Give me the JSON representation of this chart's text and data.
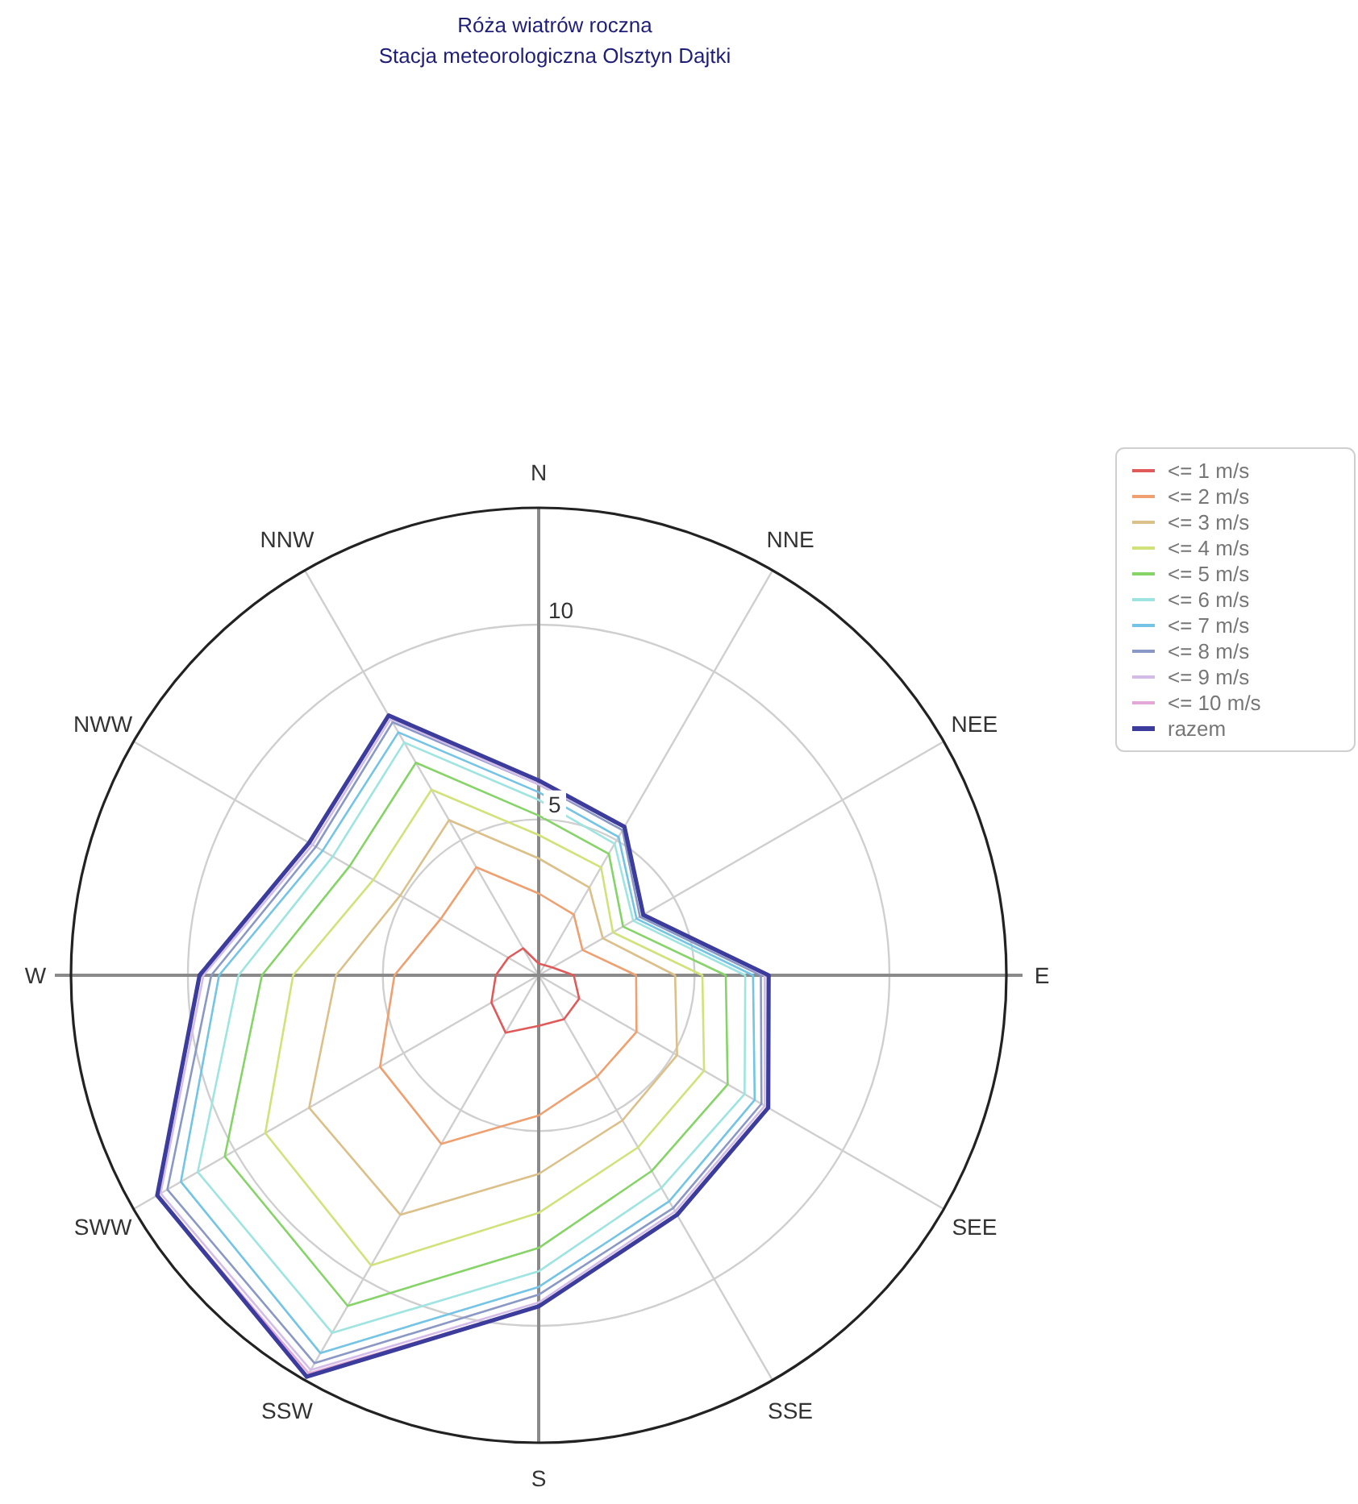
{
  "chart_data": {
    "type": "radar",
    "title": "Róża wiatrów roczna",
    "subtitle": "Stacja meteorologiczna Olsztyn Dajtki",
    "categories": [
      "N",
      "NNE",
      "NEE",
      "E",
      "SEE",
      "SSE",
      "S",
      "SSW",
      "SWW",
      "W",
      "NWW",
      "NNW"
    ],
    "ylim": [
      1,
      13
    ],
    "yticks": [
      5,
      10
    ],
    "grid": true,
    "legend": "top right",
    "marker": "none",
    "line_style": "solid",
    "series": [
      {
        "name": "<= 1 m/s",
        "color": "#e05a5a",
        "values": [
          1.3,
          1.3,
          1.4,
          1.9,
          2.2,
          2.3,
          2.3,
          2.7,
          2.4,
          2.1,
          1.9,
          1.8
        ]
      },
      {
        "name": "<= 2 m/s",
        "color": "#eea070",
        "values": [
          3.1,
          2.8,
          2.3,
          3.5,
          3.9,
          4.0,
          4.6,
          6.0,
          5.7,
          4.7,
          3.9,
          4.2
        ]
      },
      {
        "name": "<= 3 m/s",
        "color": "#dcc08a",
        "values": [
          4.0,
          3.6,
          2.9,
          4.5,
          5.1,
          5.3,
          6.1,
          8.1,
          7.8,
          6.2,
          5.1,
          5.6
        ]
      },
      {
        "name": "<= 4 m/s",
        "color": "#d2e27a",
        "values": [
          4.6,
          4.2,
          3.2,
          5.2,
          5.9,
          6.1,
          7.1,
          9.6,
          9.1,
          7.3,
          5.9,
          6.5
        ]
      },
      {
        "name": "<= 5 m/s",
        "color": "#86d468",
        "values": [
          5.1,
          4.6,
          3.5,
          5.8,
          6.6,
          6.8,
          8.0,
          10.8,
          10.3,
          8.1,
          6.6,
          7.3
        ]
      },
      {
        "name": "<= 6 m/s",
        "color": "#9ee4e0",
        "values": [
          5.5,
          4.9,
          3.8,
          6.3,
          7.1,
          7.3,
          8.6,
          11.6,
          11.1,
          8.7,
          7.1,
          7.9
        ]
      },
      {
        "name": "<= 7 m/s",
        "color": "#74c4e6",
        "values": [
          5.7,
          5.1,
          3.9,
          6.5,
          7.4,
          7.7,
          9.0,
          12.2,
          11.6,
          9.2,
          7.4,
          8.2
        ]
      },
      {
        "name": "<= 8 m/s",
        "color": "#8a98c6",
        "values": [
          5.9,
          5.3,
          4.0,
          6.7,
          7.6,
          7.9,
          9.2,
          12.5,
          12.0,
          9.4,
          7.6,
          8.5
        ]
      },
      {
        "name": "<= 9 m/s",
        "color": "#d4bce8",
        "values": [
          5.9,
          5.4,
          4.1,
          6.8,
          7.7,
          8.0,
          9.4,
          12.7,
          12.2,
          9.6,
          7.7,
          8.6
        ]
      },
      {
        "name": "<= 10 m/s",
        "color": "#e4a8d8",
        "values": [
          6.0,
          5.4,
          4.1,
          6.9,
          7.8,
          8.1,
          9.5,
          12.8,
          12.3,
          9.7,
          7.8,
          8.7
        ]
      },
      {
        "name": "razem",
        "color": "#3c3c9c",
        "values": [
          6.0,
          5.4,
          4.1,
          6.9,
          7.8,
          8.1,
          9.5,
          12.9,
          12.3,
          9.7,
          7.8,
          8.7
        ]
      }
    ]
  }
}
